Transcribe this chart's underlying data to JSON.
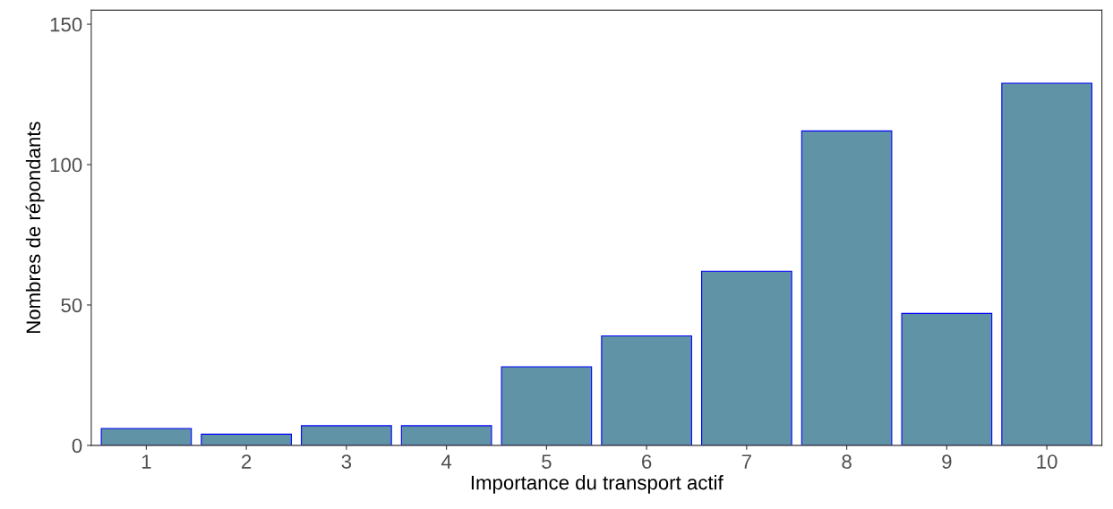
{
  "chart_data": {
    "type": "bar",
    "xlabel": "Importance du transport actif",
    "ylabel": "Nombres de répondants",
    "categories": [
      "1",
      "2",
      "3",
      "4",
      "5",
      "6",
      "7",
      "8",
      "9",
      "10"
    ],
    "values": [
      6,
      4,
      7,
      7,
      28,
      39,
      62,
      112,
      47,
      129
    ],
    "color": "#5f93a5",
    "ylim": [
      0,
      155
    ],
    "yticks": [
      0,
      50,
      100,
      150
    ],
    "grid": false
  }
}
